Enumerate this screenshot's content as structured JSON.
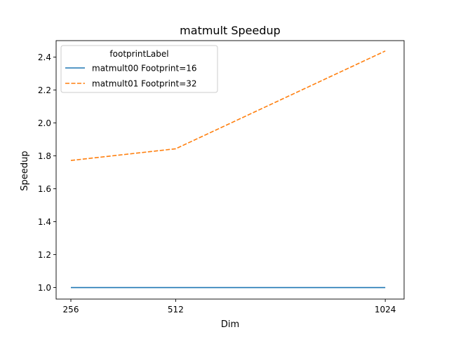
{
  "chart_data": {
    "type": "line",
    "title": "matmult Speedup",
    "xlabel": "Dim",
    "ylabel": "Speedup",
    "x": [
      256,
      512,
      1024
    ],
    "xticks": [
      256,
      512,
      1024
    ],
    "xlim": [
      220,
      1070
    ],
    "yticks": [
      1.0,
      1.2,
      1.4,
      1.6,
      1.8,
      2.0,
      2.2,
      2.4
    ],
    "ylim": [
      0.93,
      2.5
    ],
    "legend": {
      "title": "footprintLabel",
      "placement": "upper-left"
    },
    "series": [
      {
        "name": "matmult00 Footprint=16",
        "values": [
          1.0,
          1.0,
          1.0
        ],
        "color": "#1f77b4",
        "dash": "solid"
      },
      {
        "name": "matmult01 Footprint=32",
        "values": [
          1.772,
          1.843,
          2.437
        ],
        "color": "#ff7f0e",
        "dash": "dashed"
      }
    ]
  }
}
